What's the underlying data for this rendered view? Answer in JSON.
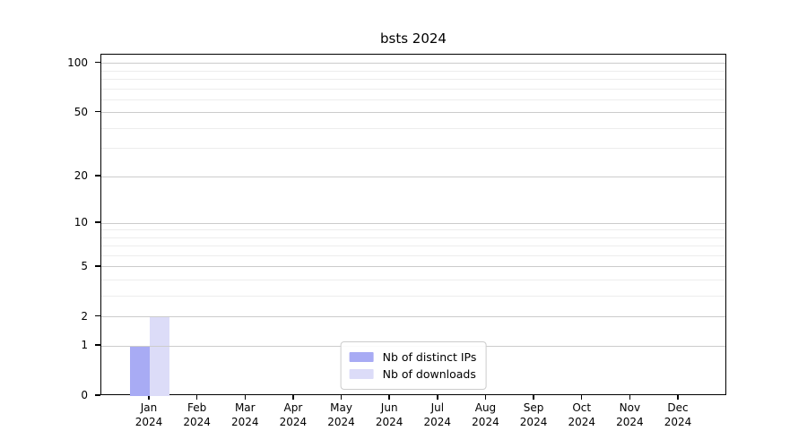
{
  "chart_data": {
    "type": "bar",
    "title": "bsts 2024",
    "categories": [
      "Jan 2024",
      "Feb 2024",
      "Mar 2024",
      "Apr 2024",
      "May 2024",
      "Jun 2024",
      "Jul 2024",
      "Aug 2024",
      "Sep 2024",
      "Oct 2024",
      "Nov 2024",
      "Dec 2024"
    ],
    "x_tick_labels": [
      [
        "Jan",
        "2024"
      ],
      [
        "Feb",
        "2024"
      ],
      [
        "Mar",
        "2024"
      ],
      [
        "Apr",
        "2024"
      ],
      [
        "May",
        "2024"
      ],
      [
        "Jun",
        "2024"
      ],
      [
        "Jul",
        "2024"
      ],
      [
        "Aug",
        "2024"
      ],
      [
        "Sep",
        "2024"
      ],
      [
        "Oct",
        "2024"
      ],
      [
        "Nov",
        "2024"
      ],
      [
        "Dec",
        "2024"
      ]
    ],
    "series": [
      {
        "name": "Nb of distinct IPs",
        "color": "#a8abf4",
        "values": [
          1,
          0,
          0,
          0,
          0,
          0,
          0,
          0,
          0,
          0,
          0,
          0
        ]
      },
      {
        "name": "Nb of downloads",
        "color": "#dcdcf8",
        "values": [
          2,
          0,
          0,
          0,
          0,
          0,
          0,
          0,
          0,
          0,
          0,
          0
        ]
      }
    ],
    "yscale": "log1p",
    "ylim": [
      0,
      113
    ],
    "y_tick_values": [
      0,
      1,
      2,
      5,
      10,
      20,
      50,
      100
    ],
    "y_tick_labels": [
      "0",
      "1",
      "2",
      "5",
      "10",
      "20",
      "50",
      "100"
    ],
    "y_minor_values": [
      3,
      4,
      6,
      7,
      8,
      9,
      30,
      40,
      60,
      70,
      80,
      90
    ],
    "grid": true,
    "legend_position": "lower center",
    "xlabel": "",
    "ylabel": ""
  },
  "legend": {
    "items": [
      {
        "label": "Nb of distinct IPs",
        "color": "#a8abf4"
      },
      {
        "label": "Nb of downloads",
        "color": "#dcdcf8"
      }
    ]
  },
  "colors": {
    "grid_major": "#cccccc",
    "grid_minor": "#ededed",
    "spine": "#000000",
    "background": "#ffffff"
  }
}
